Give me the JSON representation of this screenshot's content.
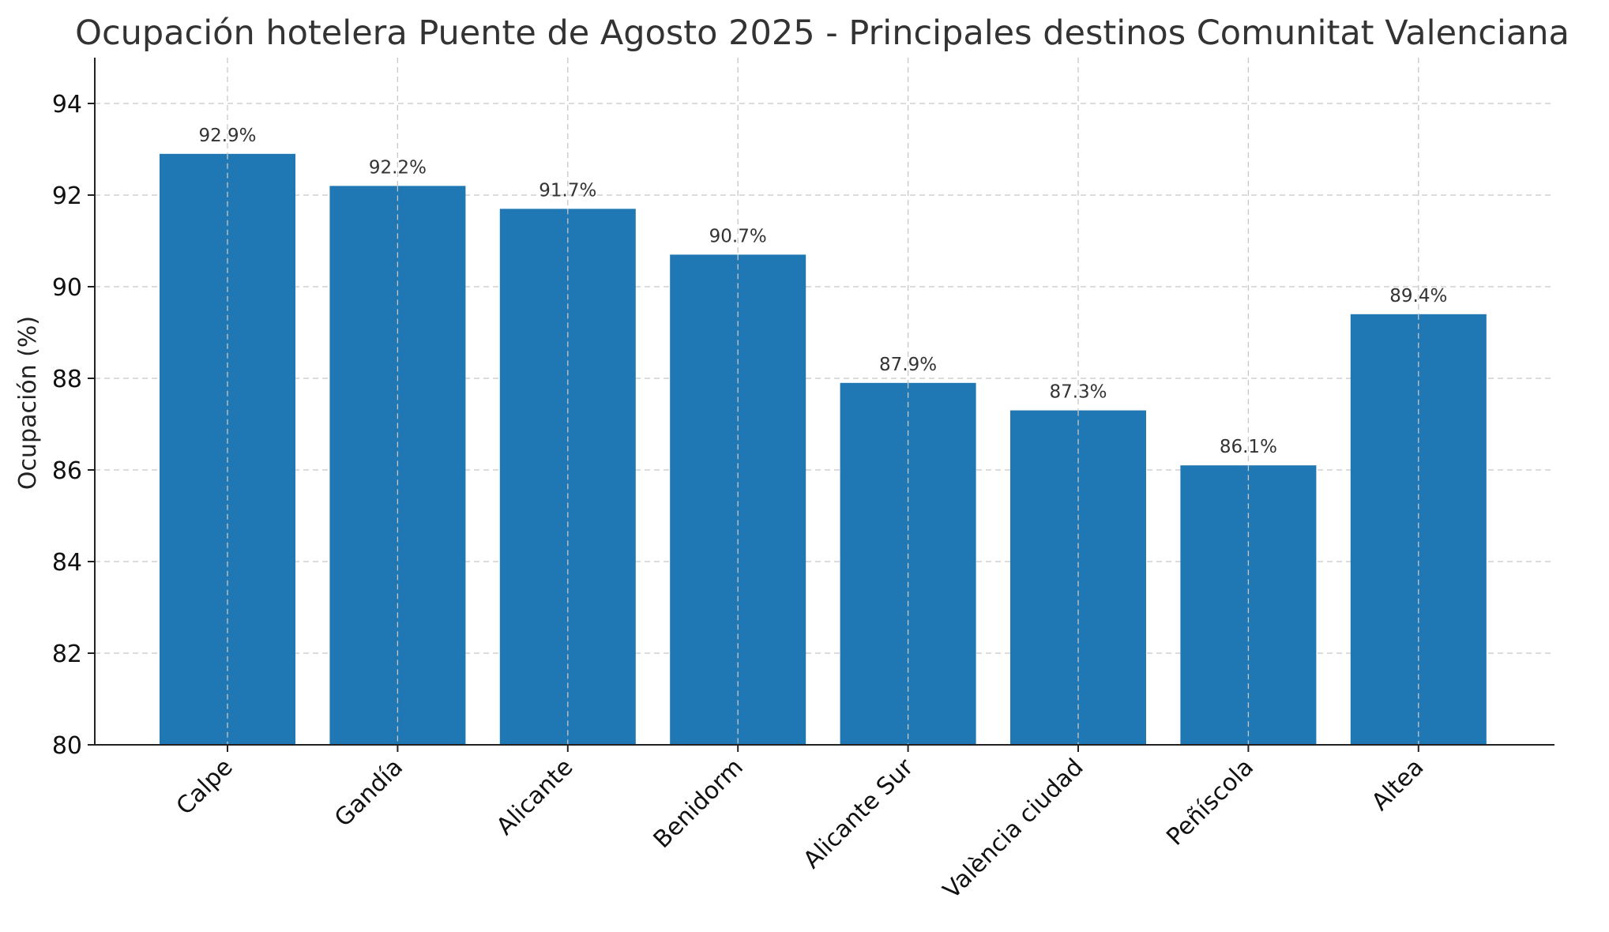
{
  "chart_data": {
    "type": "bar",
    "title": "Ocupación hotelera Puente de Agosto 2025 - Principales destinos Comunitat Valenciana",
    "xlabel": "",
    "ylabel": "Ocupación (%)",
    "categories": [
      "Calpe",
      "Gandía",
      "Alicante",
      "Benidorm",
      "Alicante Sur",
      "València ciudad",
      "Peñíscola",
      "Altea"
    ],
    "values": [
      92.9,
      92.2,
      91.7,
      90.7,
      87.9,
      87.3,
      86.1,
      89.4
    ],
    "value_labels": [
      "92.9%",
      "92.2%",
      "91.7%",
      "90.7%",
      "87.9%",
      "87.3%",
      "86.1%",
      "89.4%"
    ],
    "ylim": [
      80,
      95
    ],
    "yticks": [
      80,
      82,
      84,
      86,
      88,
      90,
      92,
      94
    ],
    "grid": true,
    "legend": "none",
    "bar_color": "#1f77b4"
  }
}
